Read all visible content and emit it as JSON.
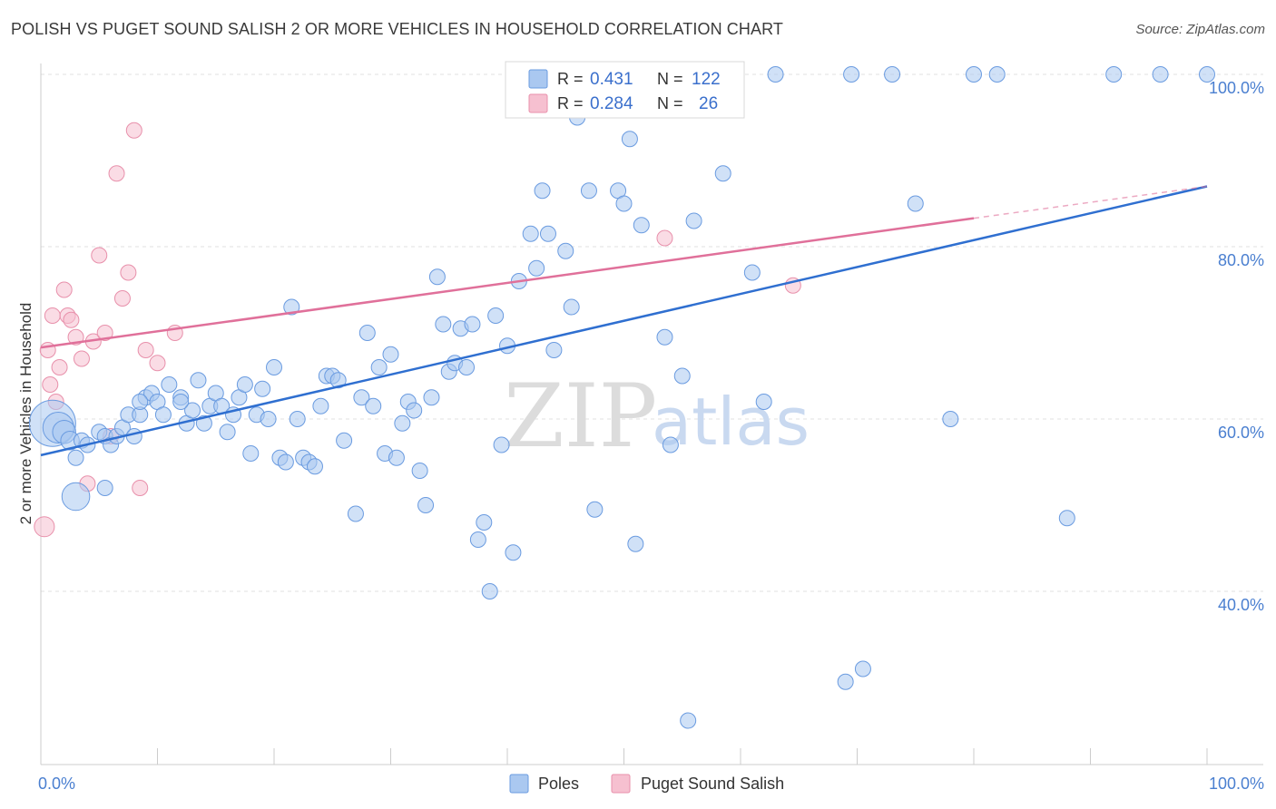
{
  "title": "POLISH VS PUGET SOUND SALISH 2 OR MORE VEHICLES IN HOUSEHOLD CORRELATION CHART",
  "source": "Source: ZipAtlas.com",
  "watermark": {
    "a": "ZIP",
    "b": "atlas"
  },
  "colors": {
    "blue_fill": "#aac8f0",
    "blue_stroke": "#6a9be0",
    "blue_line": "#2f6fd0",
    "pink_fill": "#f6c0d0",
    "pink_stroke": "#e890ab",
    "pink_line": "#e0709a",
    "grid": "#e2e2e2",
    "axis_text": "#4a7fd0"
  },
  "legend": {
    "rows": [
      {
        "r_label": "R = ",
        "r_value": "0.431",
        "n_label": "N = ",
        "n_value": "122"
      },
      {
        "r_label": "R = ",
        "r_value": "0.284",
        "n_label": "N = ",
        "n_value": "26"
      }
    ]
  },
  "bottom_legend": [
    "Poles",
    "Puget Sound Salish"
  ],
  "chart_data": {
    "type": "scatter",
    "xlabel": "",
    "ylabel": "2 or more Vehicles in Household",
    "xlim": [
      0,
      100
    ],
    "ylim": [
      20,
      102
    ],
    "x_tick_labels": [
      {
        "value": 0,
        "label": "0.0%"
      },
      {
        "value": 100,
        "label": "100.0%"
      }
    ],
    "y_tick_labels": [
      {
        "value": 40,
        "label": "40.0%"
      },
      {
        "value": 60,
        "label": "60.0%"
      },
      {
        "value": 80,
        "label": "80.0%"
      },
      {
        "value": 100,
        "label": "100.0%"
      }
    ],
    "grid": true,
    "series": [
      {
        "name": "Poles",
        "r": 0.431,
        "n": 122,
        "trendline": {
          "x": [
            0,
            100
          ],
          "y": [
            55.8,
            87.0
          ]
        },
        "points": [
          [
            1,
            59.5,
            3
          ],
          [
            1.5,
            59,
            2
          ],
          [
            2,
            58.5,
            1.5
          ],
          [
            2.5,
            57.5,
            1.2
          ],
          [
            3,
            51,
            1.8
          ],
          [
            3.5,
            57.5,
            1
          ],
          [
            4,
            57,
            1
          ],
          [
            5,
            58.5,
            1
          ],
          [
            5.5,
            58,
            1
          ],
          [
            6,
            57,
            1
          ],
          [
            5.5,
            52,
            1
          ],
          [
            6.5,
            58,
            1
          ],
          [
            7,
            59,
            1
          ],
          [
            7.5,
            60.5,
            1
          ],
          [
            8,
            58,
            1
          ],
          [
            8.5,
            60.5,
            1
          ],
          [
            9,
            62.5,
            1
          ],
          [
            9.5,
            63,
            1
          ],
          [
            10,
            62,
            1
          ],
          [
            10.5,
            60.5,
            1
          ],
          [
            11,
            64,
            1
          ],
          [
            12,
            62.5,
            1
          ],
          [
            12.5,
            59.5,
            1
          ],
          [
            13,
            61,
            1
          ],
          [
            13.5,
            64.5,
            1
          ],
          [
            14,
            59.5,
            1
          ],
          [
            14.5,
            61.5,
            1
          ],
          [
            15,
            63,
            1
          ],
          [
            15.5,
            61.5,
            1
          ],
          [
            16,
            58.5,
            1
          ],
          [
            16.5,
            60.5,
            1
          ],
          [
            17,
            62.5,
            1
          ],
          [
            17.5,
            64,
            1
          ],
          [
            18,
            56,
            1
          ],
          [
            18.5,
            60.5,
            1
          ],
          [
            19,
            63.5,
            1
          ],
          [
            19.5,
            60,
            1
          ],
          [
            20,
            66,
            1
          ],
          [
            20.5,
            55.5,
            1
          ],
          [
            21,
            55,
            1
          ],
          [
            21.5,
            73,
            1
          ],
          [
            22,
            60,
            1
          ],
          [
            22.5,
            55.5,
            1
          ],
          [
            23,
            55,
            1
          ],
          [
            23.5,
            54.5,
            1
          ],
          [
            24,
            61.5,
            1
          ],
          [
            24.5,
            65,
            1
          ],
          [
            25,
            65,
            1
          ],
          [
            25.5,
            64.5,
            1
          ],
          [
            26,
            57.5,
            1
          ],
          [
            27,
            49,
            1
          ],
          [
            27.5,
            62.5,
            1
          ],
          [
            28,
            70,
            1
          ],
          [
            28.5,
            61.5,
            1
          ],
          [
            29,
            66,
            1
          ],
          [
            29.5,
            56,
            1
          ],
          [
            30,
            67.5,
            1
          ],
          [
            30.5,
            55.5,
            1
          ],
          [
            31,
            59.5,
            1
          ],
          [
            31.5,
            62,
            1
          ],
          [
            32,
            61,
            1
          ],
          [
            32.5,
            54,
            1
          ],
          [
            33,
            50,
            1
          ],
          [
            33.5,
            62.5,
            1
          ],
          [
            34,
            76.5,
            1
          ],
          [
            34.5,
            71,
            1
          ],
          [
            35,
            65.5,
            1
          ],
          [
            35.5,
            66.5,
            1
          ],
          [
            36,
            70.5,
            1
          ],
          [
            36.5,
            66,
            1
          ],
          [
            37,
            71,
            1
          ],
          [
            37.5,
            46,
            1
          ],
          [
            38,
            48,
            1
          ],
          [
            38.5,
            40,
            1
          ],
          [
            39,
            72,
            1
          ],
          [
            39.5,
            57,
            1
          ],
          [
            40,
            68.5,
            1
          ],
          [
            40.5,
            44.5,
            1
          ],
          [
            41,
            76,
            1
          ],
          [
            42,
            81.5,
            1
          ],
          [
            42.5,
            77.5,
            1
          ],
          [
            43,
            86.5,
            1
          ],
          [
            43.5,
            81.5,
            1
          ],
          [
            44,
            68,
            1
          ],
          [
            45,
            79.5,
            1
          ],
          [
            45.5,
            73,
            1
          ],
          [
            46,
            95,
            1
          ],
          [
            47,
            86.5,
            1
          ],
          [
            47.5,
            49.5,
            1
          ],
          [
            48,
            100,
            1
          ],
          [
            49,
            100,
            1
          ],
          [
            49.5,
            86.5,
            1
          ],
          [
            50,
            85,
            1
          ],
          [
            50.5,
            92.5,
            1
          ],
          [
            51,
            45.5,
            1
          ],
          [
            51.5,
            82.5,
            1
          ],
          [
            52,
            100,
            1
          ],
          [
            53,
            100,
            1
          ],
          [
            53.5,
            69.5,
            1
          ],
          [
            54,
            57,
            1
          ],
          [
            55,
            65,
            1
          ],
          [
            55.5,
            25,
            1
          ],
          [
            56,
            83,
            1
          ],
          [
            58.5,
            88.5,
            1
          ],
          [
            61,
            77,
            1
          ],
          [
            62,
            62,
            1
          ],
          [
            63,
            100,
            1
          ],
          [
            69,
            29.5,
            1
          ],
          [
            69.5,
            100,
            1
          ],
          [
            70.5,
            31,
            1
          ],
          [
            73,
            100,
            1
          ],
          [
            75,
            85,
            1
          ],
          [
            78,
            60,
            1
          ],
          [
            80,
            100,
            1
          ],
          [
            82,
            100,
            1
          ],
          [
            88,
            48.5,
            1
          ],
          [
            92,
            100,
            1
          ],
          [
            96,
            100,
            1
          ],
          [
            100,
            100,
            1
          ],
          [
            3,
            55.5,
            1
          ],
          [
            8.5,
            62,
            1
          ],
          [
            12,
            62,
            1
          ]
        ]
      },
      {
        "name": "Puget Sound Salish",
        "r": 0.284,
        "n": 26,
        "trendline": {
          "x": [
            0,
            80
          ],
          "y": [
            68.3,
            83.3
          ]
        },
        "trendline_dashed": {
          "x": [
            80,
            100
          ],
          "y": [
            83.3,
            87.0
          ]
        },
        "points": [
          [
            0.3,
            47.5,
            1.3
          ],
          [
            0.6,
            68,
            1
          ],
          [
            0.8,
            64,
            1
          ],
          [
            1,
            72,
            1
          ],
          [
            1.3,
            62,
            1
          ],
          [
            1.6,
            66,
            1
          ],
          [
            2,
            75,
            1
          ],
          [
            2.3,
            72,
            1
          ],
          [
            2.6,
            71.5,
            1
          ],
          [
            3,
            69.5,
            1
          ],
          [
            3.5,
            67,
            1
          ],
          [
            4,
            52.5,
            1
          ],
          [
            4.5,
            69,
            1
          ],
          [
            5,
            79,
            1
          ],
          [
            5.5,
            70,
            1
          ],
          [
            6,
            58,
            1
          ],
          [
            6.5,
            88.5,
            1
          ],
          [
            7,
            74,
            1
          ],
          [
            7.5,
            77,
            1
          ],
          [
            8,
            93.5,
            1
          ],
          [
            8.5,
            52,
            1
          ],
          [
            9,
            68,
            1
          ],
          [
            10,
            66.5,
            1
          ],
          [
            11.5,
            70,
            1
          ],
          [
            53.5,
            81,
            1
          ],
          [
            64.5,
            75.5,
            1
          ]
        ]
      }
    ]
  }
}
